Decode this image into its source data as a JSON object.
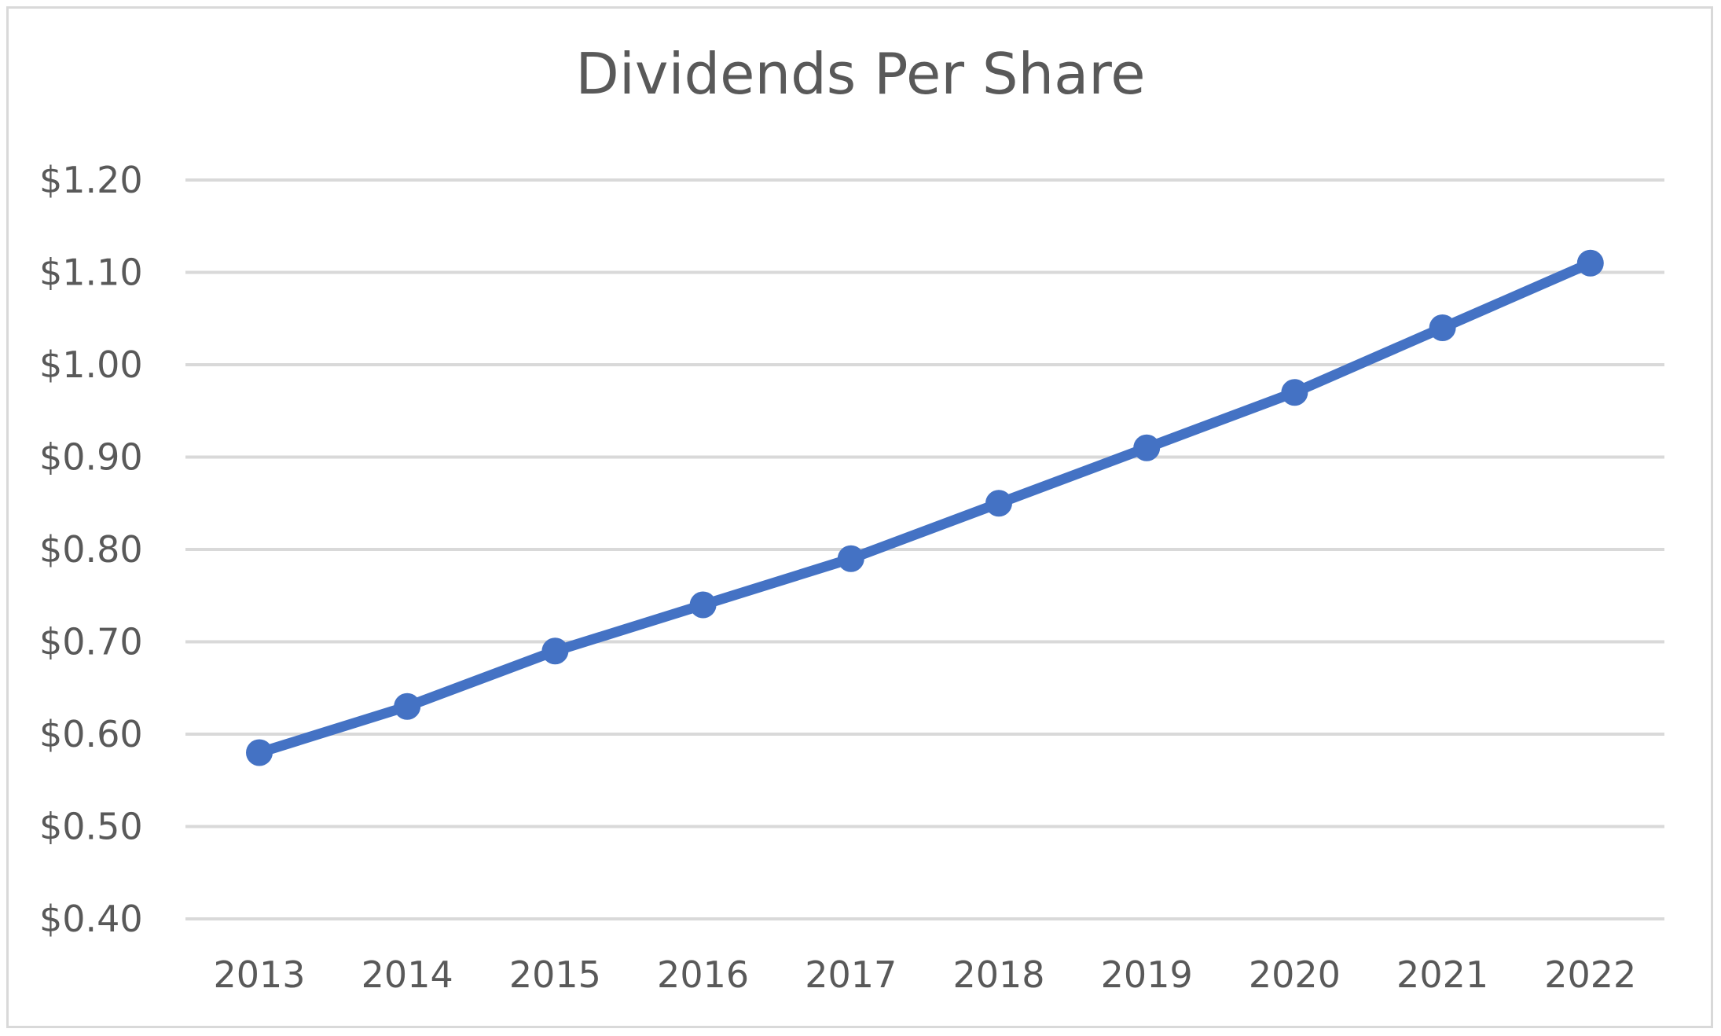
{
  "chart_data": {
    "type": "line",
    "title": "Dividends Per Share",
    "xlabel": "",
    "ylabel": "",
    "categories": [
      "2013",
      "2014",
      "2015",
      "2016",
      "2017",
      "2018",
      "2019",
      "2020",
      "2021",
      "2022"
    ],
    "series": [
      {
        "values": [
          0.58,
          0.63,
          0.69,
          0.74,
          0.79,
          0.85,
          0.91,
          0.97,
          1.04,
          1.11
        ],
        "color": "#4472c4"
      }
    ],
    "ylim": [
      0.4,
      1.2
    ],
    "y_ticks": [
      "$0.40",
      "$0.50",
      "$0.60",
      "$0.70",
      "$0.80",
      "$0.90",
      "$1.00",
      "$1.10",
      "$1.20"
    ],
    "y_tick_values": [
      0.4,
      0.5,
      0.6,
      0.7,
      0.8,
      0.9,
      1.0,
      1.1,
      1.2
    ],
    "grid": true,
    "legend": "none",
    "gridline_color": "#d9d9d9",
    "text_color": "#595959"
  }
}
